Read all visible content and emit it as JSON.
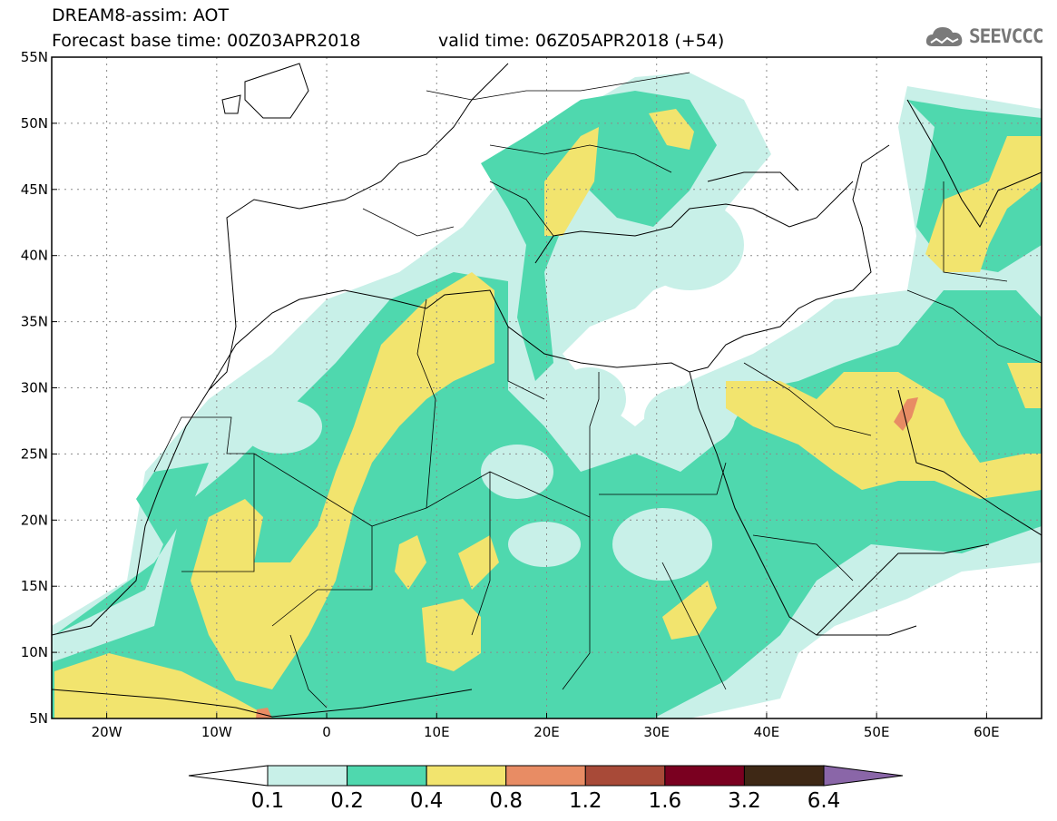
{
  "header": {
    "title": "DREAM8-assim: AOT",
    "base_time": "Forecast base time: 00Z03APR2018",
    "valid_time": "valid time: 06Z05APR2018 (+54)",
    "logo_text": "SEEVCCC",
    "logo_icon": "cloud-icon"
  },
  "map": {
    "lon_range": [
      -25,
      65
    ],
    "lat_range": [
      5,
      55
    ],
    "lat_ticks": [
      {
        "value": 55,
        "label": "55N"
      },
      {
        "value": 50,
        "label": "50N"
      },
      {
        "value": 45,
        "label": "45N"
      },
      {
        "value": 40,
        "label": "40N"
      },
      {
        "value": 35,
        "label": "35N"
      },
      {
        "value": 30,
        "label": "30N"
      },
      {
        "value": 25,
        "label": "25N"
      },
      {
        "value": 20,
        "label": "20N"
      },
      {
        "value": 15,
        "label": "15N"
      },
      {
        "value": 10,
        "label": "10N"
      },
      {
        "value": 5,
        "label": "5N"
      }
    ],
    "lon_ticks": [
      {
        "value": -20,
        "label": "20W"
      },
      {
        "value": -10,
        "label": "10W"
      },
      {
        "value": 0,
        "label": "0"
      },
      {
        "value": 10,
        "label": "10E"
      },
      {
        "value": 20,
        "label": "20E"
      },
      {
        "value": 30,
        "label": "30E"
      },
      {
        "value": 40,
        "label": "40E"
      },
      {
        "value": 50,
        "label": "50E"
      },
      {
        "value": 60,
        "label": "60E"
      }
    ],
    "grid": "dotted"
  },
  "colorbar": {
    "labels": [
      "0.1",
      "0.2",
      "0.4",
      "0.8",
      "1.2",
      "1.6",
      "3.2",
      "6.4"
    ],
    "colors": [
      "#ffffff",
      "#c8f0e8",
      "#4fd8ae",
      "#f2e46e",
      "#e88c64",
      "#a84a38",
      "#7a0020",
      "#3e2815",
      "#8a66a8"
    ]
  }
}
